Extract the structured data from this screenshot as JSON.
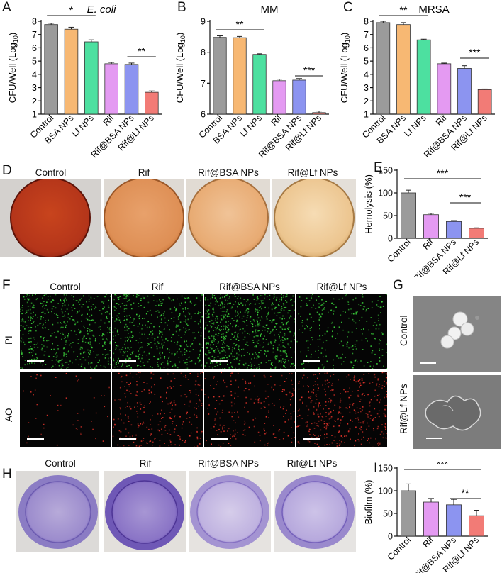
{
  "panel_letters": {
    "A": "A",
    "B": "B",
    "C": "C",
    "D": "D",
    "E": "E",
    "F": "F",
    "G": "G",
    "H": "H",
    "I": "I"
  },
  "colors": {
    "control": "#9b9b9b",
    "bsa_nps": "#f7b873",
    "lf_nps": "#4de0a0",
    "rif": "#e49af2",
    "rif_bsa_nps": "#8c94f0",
    "rif_lf_nps": "#f27b76"
  },
  "chart_data": [
    {
      "id": "A",
      "type": "bar",
      "title": "E. coli",
      "ylabel": "CFU/Well (Log10)",
      "categories": [
        "Control",
        "BSA NPs",
        "Lf NPs",
        "Rif",
        "Rif@BSA NPs",
        "Rif@Lf NPs"
      ],
      "values": [
        7.75,
        7.4,
        6.45,
        4.8,
        4.75,
        2.65
      ],
      "errors": [
        0.1,
        0.15,
        0.15,
        0.1,
        0.1,
        0.1
      ],
      "ylim": [
        1,
        8
      ],
      "yticks": [
        "1",
        "2",
        "3",
        "4",
        "5",
        "6",
        "7",
        "8"
      ],
      "significance": [
        {
          "label": "*",
          "from": "Control",
          "to": "Lf NPs"
        },
        {
          "label": "**",
          "from": "Rif@BSA NPs",
          "to": "Rif@Lf NPs"
        }
      ]
    },
    {
      "id": "B",
      "type": "bar",
      "title": "MM",
      "ylabel": "CFU/Well (Log10)",
      "categories": [
        "Control",
        "BSA NPs",
        "Lf NPs",
        "Rif",
        "Rif@BSA NPs",
        "Rif@Lf NPs"
      ],
      "values": [
        8.48,
        8.47,
        7.93,
        7.08,
        7.1,
        6.05
      ],
      "errors": [
        0.05,
        0.04,
        0.02,
        0.05,
        0.05,
        0.05
      ],
      "ylim": [
        6,
        9
      ],
      "yticks": [
        "6",
        "7",
        "8",
        "9"
      ],
      "significance": [
        {
          "label": "**",
          "from": "Control",
          "to": "Lf NPs"
        },
        {
          "label": "***",
          "from": "Rif@BSA NPs",
          "to": "Rif@Lf NPs"
        }
      ]
    },
    {
      "id": "C",
      "type": "bar",
      "title": "MRSA",
      "ylabel": "CFU/Well (Log10)",
      "categories": [
        "Control",
        "BSA NPs",
        "Lf NPs",
        "Rif",
        "Rif@BSA NPs",
        "Rif@Lf NPs"
      ],
      "values": [
        7.9,
        7.75,
        6.6,
        4.8,
        4.45,
        2.85
      ],
      "errors": [
        0.1,
        0.15,
        0.05,
        0.05,
        0.2,
        0.05
      ],
      "ylim": [
        1,
        8
      ],
      "yticks": [
        "1",
        "2",
        "3",
        "4",
        "5",
        "6",
        "7",
        "8"
      ],
      "significance": [
        {
          "label": "**",
          "from": "Control",
          "to": "Lf NPs"
        },
        {
          "label": "***",
          "from": "Rif@BSA NPs",
          "to": "Rif@Lf NPs"
        }
      ]
    },
    {
      "id": "E",
      "type": "bar",
      "title": "",
      "ylabel": "Hemolysis (%)",
      "categories": [
        "Control",
        "Rif",
        "Rif@BSA NPs",
        "Rif@Lf NPs"
      ],
      "values": [
        100,
        52,
        37,
        22
      ],
      "errors": [
        6,
        3,
        2,
        1
      ],
      "ylim": [
        0,
        150
      ],
      "yticks": [
        "0",
        "50",
        "100",
        "150"
      ],
      "significance": [
        {
          "label": "***",
          "from": "Control",
          "to": "Rif@Lf NPs"
        },
        {
          "label": "***",
          "from": "Rif@BSA NPs",
          "to": "Rif@Lf NPs"
        }
      ]
    },
    {
      "id": "I",
      "type": "bar",
      "title": "",
      "ylabel": "Biofilm (%)",
      "categories": [
        "Control",
        "Rif",
        "Rif@BSA NPs",
        "Rif@Lf NPs"
      ],
      "values": [
        100,
        75,
        69,
        45
      ],
      "errors": [
        15,
        8,
        12,
        12
      ],
      "ylim": [
        0,
        150
      ],
      "yticks": [
        "0",
        "50",
        "100",
        "150"
      ],
      "significance": [
        {
          "label": "***",
          "from": "Control",
          "to": "Rif@Lf NPs"
        },
        {
          "label": "**",
          "from": "Rif@BSA NPs",
          "to": "Rif@Lf NPs"
        }
      ]
    }
  ],
  "panel_d": {
    "labels": [
      "Control",
      "Rif",
      "Rif@BSA NPs",
      "Rif@Lf NPs"
    ]
  },
  "panel_f": {
    "columns": [
      "Control",
      "Rif",
      "Rif@BSA NPs",
      "Rif@Lf NPs"
    ],
    "rows": [
      "PI",
      "AO"
    ]
  },
  "panel_g": {
    "rows": [
      "Control",
      "Rif@Lf NPs"
    ]
  },
  "panel_h": {
    "labels": [
      "Control",
      "Rif",
      "Rif@BSA NPs",
      "Rif@Lf NPs"
    ]
  }
}
